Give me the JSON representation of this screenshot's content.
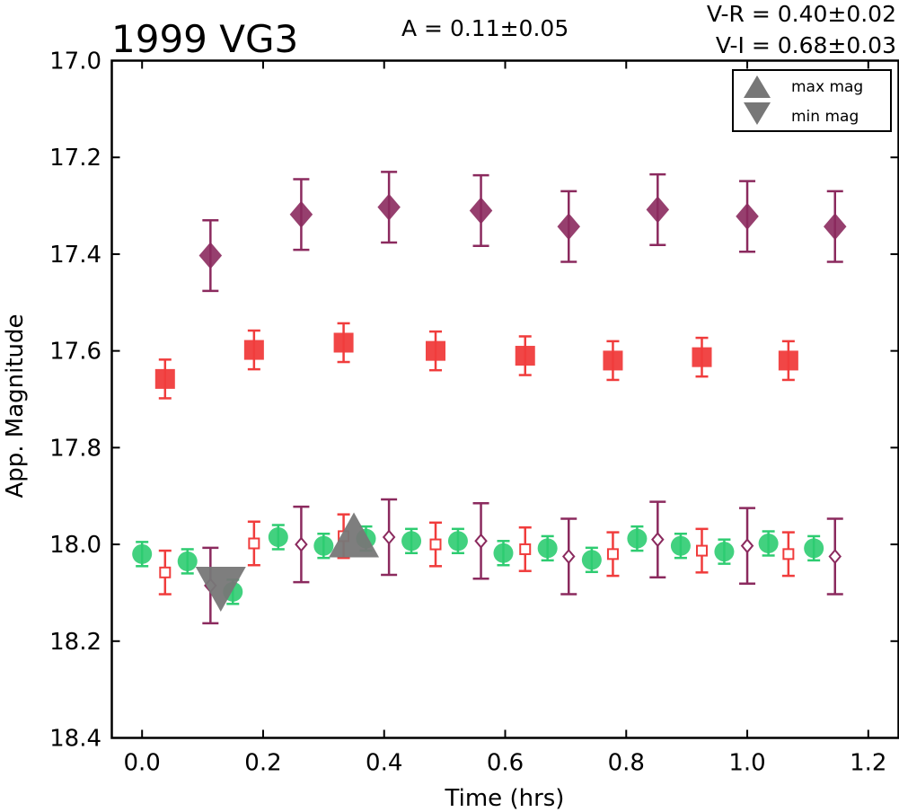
{
  "chart_data": {
    "type": "scatter",
    "title": "1999 VG3",
    "annotations": {
      "amplitude": "A  = 0.11±0.05",
      "color_vr": "V-R = 0.40±0.02",
      "color_vi": "V-I  = 0.68±0.03"
    },
    "xlabel": "Time (hrs)",
    "ylabel": "App. Magnitude",
    "xlim": [
      -0.05,
      1.25
    ],
    "ylim": [
      18.4,
      17.0
    ],
    "y_inverted": true,
    "xticks": [
      0.0,
      0.2,
      0.4,
      0.6,
      0.8,
      1.0,
      1.2
    ],
    "xtick_labels": [
      "0.0",
      "0.2",
      "0.4",
      "0.6",
      "0.8",
      "1.0",
      "1.2"
    ],
    "yticks": [
      17.0,
      17.2,
      17.4,
      17.6,
      17.8,
      18.0,
      18.2,
      18.4
    ],
    "ytick_labels": [
      "17.0",
      "17.2",
      "17.4",
      "17.6",
      "17.8",
      "18.0",
      "18.2",
      "18.4"
    ],
    "legend": {
      "placement": "top-right",
      "entries": [
        {
          "label": "max mag",
          "marker": "triangle-up",
          "color": "#777777"
        },
        {
          "label": "min mag",
          "marker": "triangle-down",
          "color": "#777777"
        }
      ]
    },
    "series": [
      {
        "marker": "filled-circle",
        "color": "#2ecc71",
        "points": [
          {
            "x": 0.0,
            "y": 18.02,
            "err": 0.025
          },
          {
            "x": 0.075,
            "y": 18.035,
            "err": 0.025
          },
          {
            "x": 0.15,
            "y": 18.098,
            "err": 0.025
          },
          {
            "x": 0.225,
            "y": 17.985,
            "err": 0.025
          },
          {
            "x": 0.3,
            "y": 18.003,
            "err": 0.025
          },
          {
            "x": 0.37,
            "y": 17.988,
            "err": 0.025
          },
          {
            "x": 0.445,
            "y": 17.993,
            "err": 0.025
          },
          {
            "x": 0.522,
            "y": 17.993,
            "err": 0.025
          },
          {
            "x": 0.597,
            "y": 18.018,
            "err": 0.025
          },
          {
            "x": 0.67,
            "y": 18.008,
            "err": 0.025
          },
          {
            "x": 0.743,
            "y": 18.032,
            "err": 0.025
          },
          {
            "x": 0.818,
            "y": 17.988,
            "err": 0.025
          },
          {
            "x": 0.89,
            "y": 18.003,
            "err": 0.025
          },
          {
            "x": 0.962,
            "y": 18.015,
            "err": 0.025
          },
          {
            "x": 1.035,
            "y": 17.998,
            "err": 0.025
          },
          {
            "x": 1.11,
            "y": 18.008,
            "err": 0.025
          }
        ]
      },
      {
        "marker": "filled-square",
        "color": "#f03c3c",
        "points": [
          {
            "x": 0.038,
            "y": 17.658,
            "err": 0.04
          },
          {
            "x": 0.185,
            "y": 17.598,
            "err": 0.04
          },
          {
            "x": 0.333,
            "y": 17.583,
            "err": 0.04
          },
          {
            "x": 0.485,
            "y": 17.6,
            "err": 0.04
          },
          {
            "x": 0.633,
            "y": 17.61,
            "err": 0.04
          },
          {
            "x": 0.778,
            "y": 17.62,
            "err": 0.04
          },
          {
            "x": 0.925,
            "y": 17.613,
            "err": 0.04
          },
          {
            "x": 1.068,
            "y": 17.62,
            "err": 0.04
          }
        ]
      },
      {
        "marker": "open-square",
        "color": "#f03c3c",
        "points": [
          {
            "x": 0.038,
            "y": 18.058,
            "err": 0.045
          },
          {
            "x": 0.185,
            "y": 17.998,
            "err": 0.045
          },
          {
            "x": 0.333,
            "y": 17.983,
            "err": 0.045
          },
          {
            "x": 0.485,
            "y": 18.0,
            "err": 0.045
          },
          {
            "x": 0.633,
            "y": 18.01,
            "err": 0.045
          },
          {
            "x": 0.778,
            "y": 18.02,
            "err": 0.045
          },
          {
            "x": 0.925,
            "y": 18.013,
            "err": 0.045
          },
          {
            "x": 1.068,
            "y": 18.02,
            "err": 0.045
          }
        ]
      },
      {
        "marker": "filled-diamond",
        "color": "#8b2a5e",
        "points": [
          {
            "x": 0.113,
            "y": 17.403,
            "err": 0.073
          },
          {
            "x": 0.263,
            "y": 17.318,
            "err": 0.073
          },
          {
            "x": 0.408,
            "y": 17.303,
            "err": 0.073
          },
          {
            "x": 0.56,
            "y": 17.31,
            "err": 0.073
          },
          {
            "x": 0.705,
            "y": 17.343,
            "err": 0.073
          },
          {
            "x": 0.852,
            "y": 17.308,
            "err": 0.073
          },
          {
            "x": 1.0,
            "y": 17.322,
            "err": 0.073
          },
          {
            "x": 1.145,
            "y": 17.343,
            "err": 0.073
          }
        ]
      },
      {
        "marker": "open-diamond",
        "color": "#8b2a5e",
        "points": [
          {
            "x": 0.113,
            "y": 18.085,
            "err": 0.078
          },
          {
            "x": 0.263,
            "y": 18.0,
            "err": 0.078
          },
          {
            "x": 0.408,
            "y": 17.985,
            "err": 0.078
          },
          {
            "x": 0.56,
            "y": 17.993,
            "err": 0.078
          },
          {
            "x": 0.705,
            "y": 18.025,
            "err": 0.078
          },
          {
            "x": 0.852,
            "y": 17.99,
            "err": 0.078
          },
          {
            "x": 1.0,
            "y": 18.003,
            "err": 0.078
          },
          {
            "x": 1.145,
            "y": 18.025,
            "err": 0.078
          }
        ]
      }
    ],
    "extrema_markers": [
      {
        "kind": "max mag",
        "marker": "triangle-up",
        "x": 0.35,
        "y": 17.985
      },
      {
        "kind": "min mag",
        "marker": "triangle-down",
        "x": 0.13,
        "y": 18.088
      }
    ]
  }
}
